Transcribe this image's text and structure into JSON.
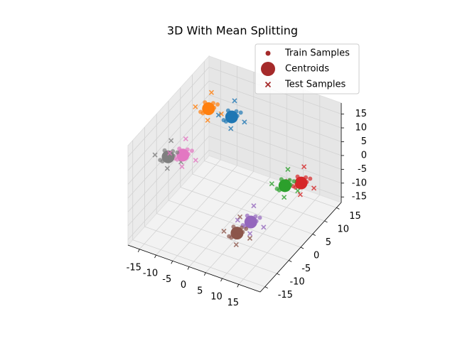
{
  "chart_data": {
    "type": "scatter3d",
    "title": "3D With Mean Splitting",
    "xlim": [
      -18.5,
      21.5
    ],
    "ylim": [
      -17,
      17
    ],
    "zlim": [
      -17,
      19
    ],
    "xticks": [
      -15,
      -10,
      -5,
      0,
      5,
      10,
      15
    ],
    "yticks": [
      -15,
      -10,
      -5,
      0,
      5,
      10,
      15
    ],
    "zticks": [
      -15,
      -10,
      -5,
      0,
      5,
      10,
      15
    ],
    "grid": true,
    "legend_loc": "upper right",
    "legend_color": "#a52a2a",
    "series": [
      {
        "name": "Train Samples",
        "marker": "o"
      },
      {
        "name": "Centroids",
        "marker": "O"
      },
      {
        "name": "Test Samples",
        "marker": "x"
      }
    ],
    "clusters": [
      {
        "color": "#ff7f0e",
        "centroid": {
          "x": -10,
          "y": 5,
          "z": 15
        },
        "train": {
          "x": [
            -8.8,
            -11.5,
            -9.6,
            -10.7,
            -7.9,
            -12.2,
            -9.2,
            -10.3
          ],
          "y": [
            4.2,
            5.6,
            6.8,
            3.6,
            5.9,
            4.7,
            3.0,
            7.4
          ],
          "z": [
            15.5,
            16.1,
            13.8,
            14.4,
            16.6,
            13.2,
            17.3,
            14.6
          ]
        },
        "test": {
          "x": [
            -7.2,
            -12.6,
            -8.3,
            -11.2
          ],
          "y": [
            6.5,
            3.1,
            2.3,
            7.9
          ],
          "z": [
            12.9,
            16.4,
            14.1,
            17.6
          ]
        }
      },
      {
        "color": "#1f77b4",
        "centroid": {
          "x": -3,
          "y": 5,
          "z": 15
        },
        "train": {
          "x": [
            -1.8,
            -4.5,
            -2.6,
            -3.7,
            -0.9,
            -5.2,
            -2.2,
            -3.3
          ],
          "y": [
            4.2,
            5.6,
            6.8,
            3.6,
            5.9,
            4.7,
            3.0,
            7.4
          ],
          "z": [
            15.5,
            16.1,
            13.8,
            14.4,
            16.6,
            13.2,
            17.3,
            14.6
          ]
        },
        "test": {
          "x": [
            -0.2,
            -5.6,
            -1.3,
            -4.2
          ],
          "y": [
            6.5,
            3.1,
            2.3,
            7.9
          ],
          "z": [
            12.9,
            16.4,
            14.1,
            17.6
          ]
        }
      },
      {
        "color": "#7f7f7f",
        "centroid": {
          "x": -15,
          "y": -5,
          "z": 5
        },
        "train": {
          "x": [
            -13.8,
            -16.5,
            -14.6,
            -15.7,
            -12.9,
            -17.2,
            -14.2,
            -15.3
          ],
          "y": [
            -5.8,
            -4.4,
            -3.2,
            -6.4,
            -4.1,
            -5.3,
            -7.0,
            -2.6
          ],
          "z": [
            5.5,
            6.1,
            3.8,
            4.4,
            6.6,
            3.2,
            7.3,
            4.6
          ]
        },
        "test": {
          "x": [
            -12.2,
            -17.6,
            -13.3,
            -16.2
          ],
          "y": [
            -3.5,
            -6.9,
            -7.7,
            -2.1
          ],
          "z": [
            2.9,
            6.4,
            4.1,
            7.6
          ]
        }
      },
      {
        "color": "#e377c2",
        "centroid": {
          "x": -12,
          "y": -3,
          "z": 5
        },
        "train": {
          "x": [
            -10.8,
            -13.5,
            -11.6,
            -12.7,
            -9.9,
            -14.2,
            -11.2,
            -12.3
          ],
          "y": [
            -3.8,
            -2.4,
            -1.2,
            -4.4,
            -2.1,
            -3.3,
            -5.0,
            -0.6
          ],
          "z": [
            5.5,
            6.1,
            3.8,
            4.4,
            6.6,
            3.2,
            7.3,
            4.6
          ]
        },
        "test": {
          "x": [
            -9.2,
            -14.6,
            -10.3,
            -13.2
          ],
          "y": [
            -1.5,
            -4.9,
            -5.7,
            -0.1
          ],
          "z": [
            2.9,
            6.4,
            4.1,
            7.6
          ]
        }
      },
      {
        "color": "#2ca02c",
        "centroid": {
          "x": 16,
          "y": 1,
          "z": 2
        },
        "train": {
          "x": [
            17.2,
            14.5,
            16.4,
            15.3,
            18.1,
            13.8,
            16.8,
            15.7
          ],
          "y": [
            0.2,
            1.6,
            2.8,
            -0.4,
            1.9,
            0.7,
            -1.0,
            3.4
          ],
          "z": [
            2.5,
            3.1,
            0.8,
            1.4,
            3.6,
            0.2,
            4.3,
            1.6
          ]
        },
        "test": {
          "x": [
            18.8,
            13.4,
            17.7,
            14.8
          ],
          "y": [
            2.5,
            -0.9,
            -1.7,
            3.9
          ],
          "z": [
            -0.1,
            3.4,
            1.1,
            4.6
          ]
        }
      },
      {
        "color": "#d62728",
        "centroid": {
          "x": 18,
          "y": 5,
          "z": 0
        },
        "train": {
          "x": [
            19.2,
            16.5,
            18.4,
            17.3,
            20.1,
            15.8,
            18.8,
            17.7
          ],
          "y": [
            4.2,
            5.6,
            6.8,
            3.6,
            5.9,
            4.7,
            3.0,
            7.4
          ],
          "z": [
            0.5,
            1.1,
            -1.2,
            -0.6,
            1.6,
            -1.8,
            2.3,
            -0.4
          ]
        },
        "test": {
          "x": [
            20.8,
            15.4,
            19.7,
            16.8
          ],
          "y": [
            6.5,
            3.1,
            2.3,
            7.9
          ],
          "z": [
            -2.1,
            1.4,
            -0.9,
            2.6
          ]
        }
      },
      {
        "color": "#9467bd",
        "centroid": {
          "x": 10,
          "y": -5,
          "z": -8
        },
        "train": {
          "x": [
            11.2,
            8.5,
            10.4,
            9.3,
            12.1,
            7.8,
            10.8,
            9.7
          ],
          "y": [
            -5.8,
            -4.4,
            -3.2,
            -6.4,
            -4.1,
            -5.3,
            -7.0,
            -2.6
          ],
          "z": [
            -7.5,
            -6.9,
            -9.2,
            -8.6,
            -6.4,
            -9.8,
            -5.7,
            -8.4
          ]
        },
        "test": {
          "x": [
            12.8,
            7.4,
            11.7,
            8.8
          ],
          "y": [
            -3.5,
            -6.9,
            -7.7,
            -2.1
          ],
          "z": [
            -10.1,
            -6.6,
            -8.9,
            -5.4
          ]
        }
      },
      {
        "color": "#8c564b",
        "centroid": {
          "x": 8,
          "y": -8,
          "z": -10
        },
        "train": {
          "x": [
            9.2,
            6.5,
            8.4,
            7.3,
            10.1,
            5.8,
            8.8,
            7.7
          ],
          "y": [
            -8.8,
            -7.4,
            -6.2,
            -9.4,
            -7.1,
            -8.3,
            -10.0,
            -5.6
          ],
          "z": [
            -9.5,
            -8.9,
            -11.2,
            -10.6,
            -8.4,
            -11.8,
            -7.7,
            -10.4
          ]
        },
        "test": {
          "x": [
            10.8,
            5.4,
            9.7,
            6.8
          ],
          "y": [
            -6.5,
            -9.9,
            -10.7,
            -5.1
          ],
          "z": [
            -12.1,
            -8.6,
            -10.9,
            -7.4
          ]
        }
      }
    ]
  }
}
